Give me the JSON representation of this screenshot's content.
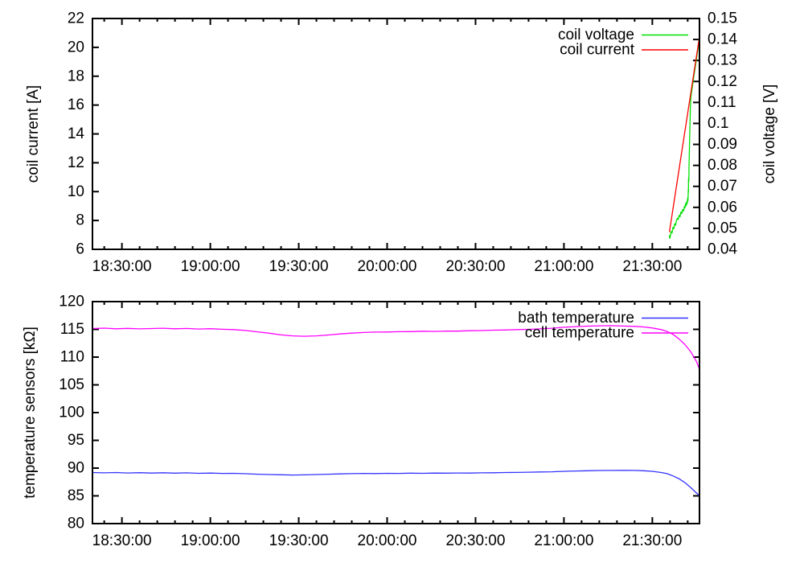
{
  "figure": {
    "background": "#ffffff",
    "frame_color": "#000000"
  },
  "chart_data": [
    {
      "type": "line",
      "title": "",
      "x_axis": {
        "kind": "time",
        "min": 0,
        "max": 206,
        "min_label": "18:20:00",
        "max_label": "21:46:00",
        "major_ticks": [
          {
            "t": 10,
            "label": "18:30:00"
          },
          {
            "t": 40,
            "label": "19:00:00"
          },
          {
            "t": 70,
            "label": "19:30:00"
          },
          {
            "t": 100,
            "label": "20:00:00"
          },
          {
            "t": 130,
            "label": "20:30:00"
          },
          {
            "t": 160,
            "label": "21:00:00"
          },
          {
            "t": 190,
            "label": "21:30:00"
          }
        ],
        "minor_start": 4,
        "minor_step": 6,
        "grid": false
      },
      "y_left": {
        "label": "coil current [A]",
        "min": 6,
        "max": 22,
        "ticks": [
          {
            "v": 6,
            "label": "6"
          },
          {
            "v": 8,
            "label": "8"
          },
          {
            "v": 10,
            "label": "10"
          },
          {
            "v": 12,
            "label": "12"
          },
          {
            "v": 14,
            "label": "14"
          },
          {
            "v": 16,
            "label": "16"
          },
          {
            "v": 18,
            "label": "18"
          },
          {
            "v": 20,
            "label": "20"
          },
          {
            "v": 22,
            "label": "22"
          }
        ]
      },
      "y_right": {
        "label": "coil voltage [V]",
        "min": 0.04,
        "max": 0.15,
        "ticks": [
          {
            "v": 0.04,
            "label": "0.04"
          },
          {
            "v": 0.05,
            "label": "0.05"
          },
          {
            "v": 0.06,
            "label": "0.06"
          },
          {
            "v": 0.07,
            "label": "0.07"
          },
          {
            "v": 0.08,
            "label": "0.08"
          },
          {
            "v": 0.09,
            "label": "0.09"
          },
          {
            "v": 0.1,
            "label": "0.1"
          },
          {
            "v": 0.11,
            "label": "0.11"
          },
          {
            "v": 0.12,
            "label": "0.12"
          },
          {
            "v": 0.13,
            "label": "0.13"
          },
          {
            "v": 0.14,
            "label": "0.14"
          },
          {
            "v": 0.15,
            "label": "0.15"
          }
        ]
      },
      "legend": {
        "position": "top-right-inside",
        "items": [
          {
            "name": "coil voltage",
            "color": "#00e000"
          },
          {
            "name": "coil current",
            "color": "#ff0000"
          }
        ]
      },
      "series": [
        {
          "name": "coil voltage",
          "axis": "right",
          "color": "#00e000",
          "points": [
            [
              195.8,
              0.0468
            ],
            [
              195.9,
              0.0452
            ],
            [
              196.1,
              0.0462
            ],
            [
              196.4,
              0.0485
            ],
            [
              196.7,
              0.0478
            ],
            [
              197.0,
              0.0505
            ],
            [
              197.3,
              0.0498
            ],
            [
              197.6,
              0.0522
            ],
            [
              197.9,
              0.0515
            ],
            [
              198.2,
              0.0538
            ],
            [
              198.5,
              0.0548
            ],
            [
              198.8,
              0.0542
            ],
            [
              199.1,
              0.0562
            ],
            [
              199.4,
              0.0555
            ],
            [
              199.7,
              0.0578
            ],
            [
              200.0,
              0.057
            ],
            [
              200.3,
              0.059
            ],
            [
              200.6,
              0.0582
            ],
            [
              200.9,
              0.0605
            ],
            [
              201.1,
              0.0598
            ],
            [
              201.3,
              0.0618
            ],
            [
              201.5,
              0.0608
            ],
            [
              201.7,
              0.0628
            ],
            [
              201.85,
              0.0618
            ],
            [
              202.0,
              0.0645
            ],
            [
              202.1,
              0.0632
            ],
            [
              202.2,
              0.0685
            ],
            [
              202.25,
              0.0672
            ],
            [
              202.3,
              0.0738
            ],
            [
              202.4,
              0.0725
            ],
            [
              202.45,
              0.08
            ],
            [
              202.55,
              0.086
            ],
            [
              202.65,
              0.092
            ],
            [
              202.75,
              0.098
            ],
            [
              202.85,
              0.104
            ],
            [
              202.95,
              0.109
            ],
            [
              203.1,
              0.1128
            ],
            [
              203.6,
              0.1175
            ],
            [
              204.1,
              0.1225
            ],
            [
              204.6,
              0.1272
            ],
            [
              205.1,
              0.132
            ],
            [
              205.6,
              0.1365
            ],
            [
              205.9,
              0.14
            ]
          ]
        },
        {
          "name": "coil current",
          "axis": "left",
          "color": "#ff0000",
          "points": [
            [
              195.8,
              7.2
            ],
            [
              205.9,
              20.6
            ]
          ]
        }
      ]
    },
    {
      "type": "line",
      "title": "",
      "x_axis": {
        "kind": "time",
        "min": 0,
        "max": 206,
        "min_label": "18:20:00",
        "max_label": "21:46:00",
        "major_ticks": [
          {
            "t": 10,
            "label": "18:30:00"
          },
          {
            "t": 40,
            "label": "19:00:00"
          },
          {
            "t": 70,
            "label": "19:30:00"
          },
          {
            "t": 100,
            "label": "20:00:00"
          },
          {
            "t": 130,
            "label": "20:30:00"
          },
          {
            "t": 160,
            "label": "21:00:00"
          },
          {
            "t": 190,
            "label": "21:30:00"
          }
        ],
        "minor_start": 4,
        "minor_step": 6,
        "grid": false
      },
      "y_left": {
        "label": "temperature sensors [kΩ]",
        "min": 80,
        "max": 120,
        "ticks": [
          {
            "v": 80,
            "label": "80"
          },
          {
            "v": 85,
            "label": "85"
          },
          {
            "v": 90,
            "label": "90"
          },
          {
            "v": 95,
            "label": "95"
          },
          {
            "v": 100,
            "label": "100"
          },
          {
            "v": 105,
            "label": "105"
          },
          {
            "v": 110,
            "label": "110"
          },
          {
            "v": 115,
            "label": "115"
          },
          {
            "v": 120,
            "label": "120"
          }
        ]
      },
      "legend": {
        "position": "top-right-inside",
        "items": [
          {
            "name": "bath temperature",
            "color": "#3333ff"
          },
          {
            "name": "cell temperature",
            "color": "#ff00ff"
          }
        ]
      },
      "series": [
        {
          "name": "bath temperature",
          "axis": "left",
          "color": "#3333ff",
          "points": [
            [
              0,
              89.2
            ],
            [
              4,
              89.14
            ],
            [
              8,
              89.2
            ],
            [
              12,
              89.12
            ],
            [
              16,
              89.18
            ],
            [
              20,
              89.1
            ],
            [
              24,
              89.16
            ],
            [
              28,
              89.08
            ],
            [
              32,
              89.14
            ],
            [
              36,
              89.06
            ],
            [
              40,
              89.1
            ],
            [
              44,
              89.04
            ],
            [
              48,
              89.06
            ],
            [
              52,
              88.98
            ],
            [
              56,
              88.9
            ],
            [
              60,
              88.84
            ],
            [
              64,
              88.8
            ],
            [
              68,
              88.76
            ],
            [
              72,
              88.78
            ],
            [
              76,
              88.84
            ],
            [
              80,
              88.9
            ],
            [
              84,
              88.96
            ],
            [
              88,
              89.0
            ],
            [
              92,
              89.04
            ],
            [
              96,
              89.02
            ],
            [
              100,
              89.06
            ],
            [
              104,
              89.04
            ],
            [
              108,
              89.08
            ],
            [
              112,
              89.06
            ],
            [
              116,
              89.1
            ],
            [
              120,
              89.08
            ],
            [
              124,
              89.12
            ],
            [
              128,
              89.1
            ],
            [
              132,
              89.14
            ],
            [
              136,
              89.16
            ],
            [
              140,
              89.2
            ],
            [
              144,
              89.22
            ],
            [
              148,
              89.26
            ],
            [
              152,
              89.3
            ],
            [
              156,
              89.34
            ],
            [
              160,
              89.42
            ],
            [
              164,
              89.48
            ],
            [
              168,
              89.52
            ],
            [
              172,
              89.56
            ],
            [
              176,
              89.58
            ],
            [
              180,
              89.6
            ],
            [
              184,
              89.58
            ],
            [
              187,
              89.52
            ],
            [
              190,
              89.42
            ],
            [
              193,
              89.2
            ],
            [
              195,
              89.0
            ],
            [
              197,
              88.6
            ],
            [
              199,
              88.1
            ],
            [
              201,
              87.4
            ],
            [
              203,
              86.5
            ],
            [
              205,
              85.5
            ],
            [
              206,
              85.0
            ]
          ]
        },
        {
          "name": "cell temperature",
          "axis": "left",
          "color": "#ff00ff",
          "points": [
            [
              0,
              115.15
            ],
            [
              4,
              115.22
            ],
            [
              8,
              115.1
            ],
            [
              12,
              115.18
            ],
            [
              16,
              115.08
            ],
            [
              20,
              115.15
            ],
            [
              24,
              115.2
            ],
            [
              28,
              115.1
            ],
            [
              32,
              115.16
            ],
            [
              36,
              115.06
            ],
            [
              40,
              115.12
            ],
            [
              44,
              115.02
            ],
            [
              48,
              114.95
            ],
            [
              52,
              114.8
            ],
            [
              56,
              114.55
            ],
            [
              60,
              114.3
            ],
            [
              64,
              114.0
            ],
            [
              68,
              113.82
            ],
            [
              72,
              113.76
            ],
            [
              76,
              113.82
            ],
            [
              80,
              113.98
            ],
            [
              84,
              114.18
            ],
            [
              88,
              114.32
            ],
            [
              92,
              114.44
            ],
            [
              96,
              114.5
            ],
            [
              100,
              114.52
            ],
            [
              104,
              114.58
            ],
            [
              108,
              114.6
            ],
            [
              112,
              114.66
            ],
            [
              116,
              114.62
            ],
            [
              120,
              114.7
            ],
            [
              124,
              114.68
            ],
            [
              128,
              114.75
            ],
            [
              132,
              114.78
            ],
            [
              136,
              114.85
            ],
            [
              140,
              114.88
            ],
            [
              144,
              114.95
            ],
            [
              148,
              115.0
            ],
            [
              152,
              115.08
            ],
            [
              156,
              115.2
            ],
            [
              160,
              115.38
            ],
            [
              164,
              115.5
            ],
            [
              168,
              115.58
            ],
            [
              172,
              115.64
            ],
            [
              176,
              115.66
            ],
            [
              180,
              115.6
            ],
            [
              184,
              115.54
            ],
            [
              187,
              115.44
            ],
            [
              190,
              115.24
            ],
            [
              193,
              114.95
            ],
            [
              195,
              114.62
            ],
            [
              197,
              114.1
            ],
            [
              199,
              113.3
            ],
            [
              201,
              112.3
            ],
            [
              203,
              111.0
            ],
            [
              205,
              109.2
            ],
            [
              206,
              107.8
            ]
          ]
        }
      ]
    }
  ]
}
